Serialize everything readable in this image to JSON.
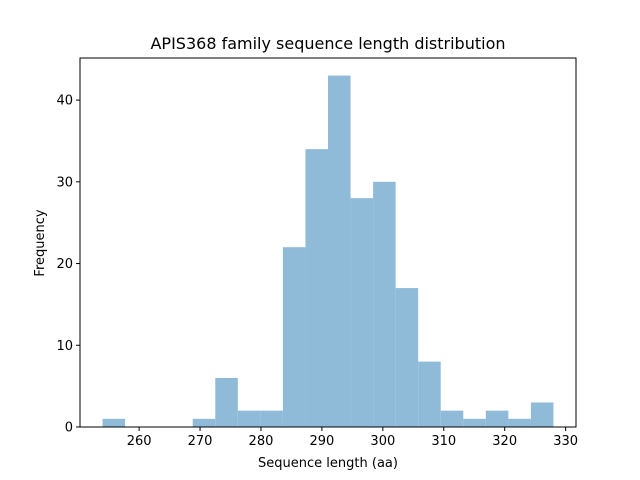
{
  "chart_data": {
    "type": "bar",
    "subtype": "histogram",
    "title": "APIS368 family sequence length distribution",
    "xlabel": "Sequence length (aa)",
    "ylabel": "Frequency",
    "xlim": [
      250.3,
      331.7
    ],
    "ylim": [
      0,
      45.15
    ],
    "xticks": [
      260,
      270,
      280,
      290,
      300,
      310,
      320,
      330
    ],
    "yticks": [
      0,
      10,
      20,
      30,
      40
    ],
    "bar_color": "#8fbbd9",
    "grid": false,
    "legend": "none",
    "bins": [
      {
        "start": 254.0,
        "end": 257.7,
        "count": 1
      },
      {
        "start": 257.7,
        "end": 261.4,
        "count": 0
      },
      {
        "start": 261.4,
        "end": 265.1,
        "count": 0
      },
      {
        "start": 265.1,
        "end": 268.8,
        "count": 0
      },
      {
        "start": 268.8,
        "end": 272.5,
        "count": 1
      },
      {
        "start": 272.5,
        "end": 276.2,
        "count": 6
      },
      {
        "start": 276.2,
        "end": 279.9,
        "count": 2
      },
      {
        "start": 279.9,
        "end": 283.6,
        "count": 2
      },
      {
        "start": 283.6,
        "end": 287.3,
        "count": 22
      },
      {
        "start": 287.3,
        "end": 291.0,
        "count": 34
      },
      {
        "start": 291.0,
        "end": 294.7,
        "count": 43
      },
      {
        "start": 294.7,
        "end": 298.4,
        "count": 28
      },
      {
        "start": 298.4,
        "end": 302.1,
        "count": 30
      },
      {
        "start": 302.1,
        "end": 305.8,
        "count": 17
      },
      {
        "start": 305.8,
        "end": 309.5,
        "count": 8
      },
      {
        "start": 309.5,
        "end": 313.2,
        "count": 2
      },
      {
        "start": 313.2,
        "end": 316.9,
        "count": 1
      },
      {
        "start": 316.9,
        "end": 320.6,
        "count": 2
      },
      {
        "start": 320.6,
        "end": 324.3,
        "count": 1
      },
      {
        "start": 324.3,
        "end": 328.0,
        "count": 3
      }
    ]
  }
}
